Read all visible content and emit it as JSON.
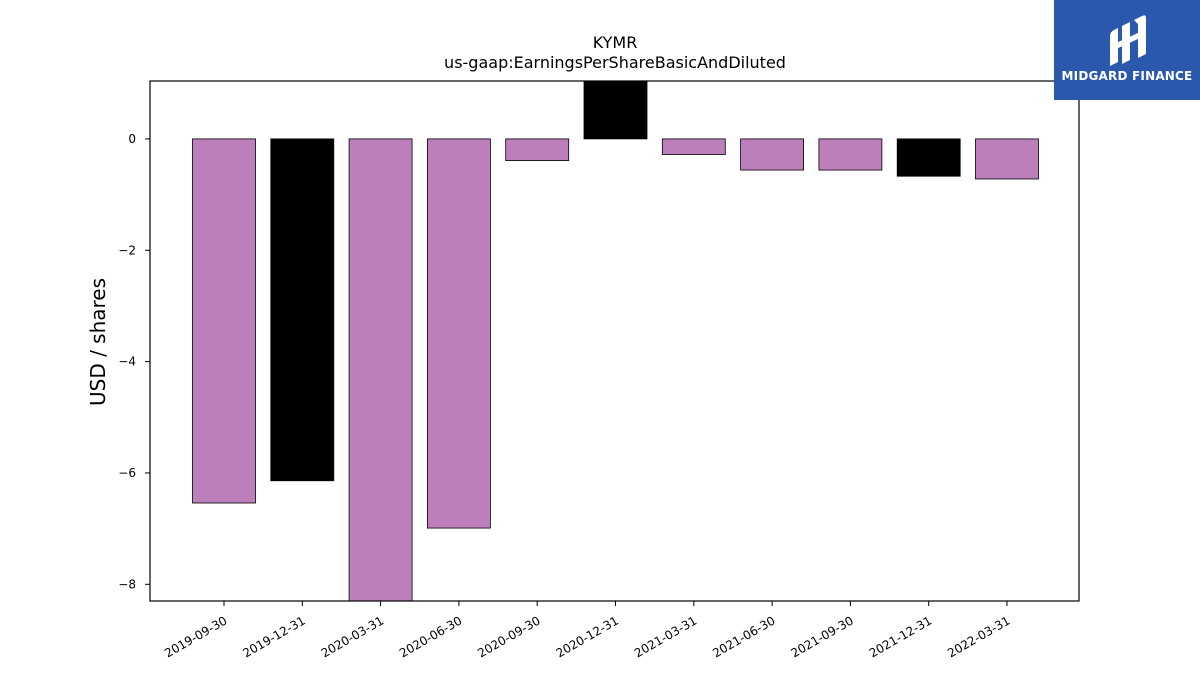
{
  "chart_data": {
    "type": "bar",
    "title": "KYMR",
    "subtitle": "us-gaap:EarningsPerShareBasicAndDiluted",
    "xlabel": "",
    "ylabel": "USD / shares",
    "categories": [
      "2019-09-30",
      "2019-12-31",
      "2020-03-31",
      "2020-06-30",
      "2020-09-30",
      "2020-12-31",
      "2021-03-31",
      "2021-06-30",
      "2021-09-30",
      "2021-12-31",
      "2022-03-31"
    ],
    "values": [
      -6.54,
      -6.14,
      -8.3,
      -6.99,
      -0.39,
      1.04,
      -0.28,
      -0.56,
      -0.56,
      -0.67,
      -0.72
    ],
    "bar_colors": [
      "#bc7fbc",
      "#000000",
      "#bc7fbc",
      "#bc7fbc",
      "#bc7fbc",
      "#000000",
      "#bc7fbc",
      "#bc7fbc",
      "#bc7fbc",
      "#000000",
      "#bc7fbc"
    ],
    "ylim": [
      -8.3,
      1.04
    ],
    "yticks": [
      0,
      -2,
      -4,
      -6,
      -8
    ],
    "ytick_labels": [
      "0",
      "−2",
      "−4",
      "−6",
      "−8"
    ],
    "grid": false,
    "legend": "none"
  },
  "logo": {
    "text": "MIDGARD FINANCE",
    "background": "#2a58ad"
  }
}
